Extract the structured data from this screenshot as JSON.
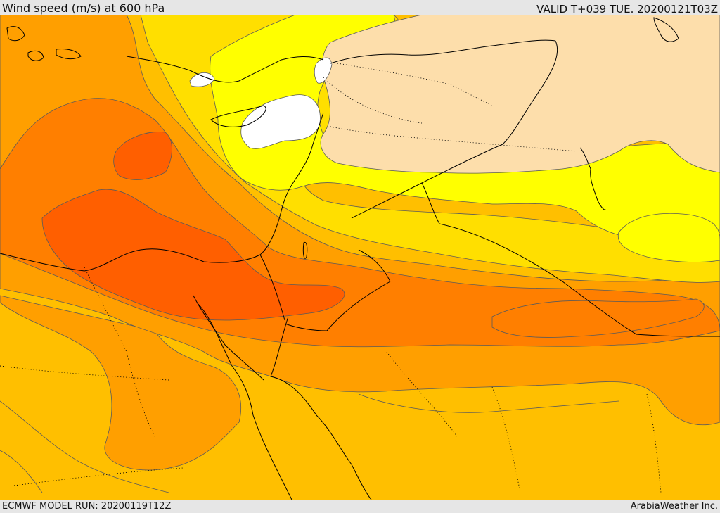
{
  "header": {
    "title": "Wind speed (m/s) at 600 hPa",
    "valid": "VALID T+039 TUE. 20200121T03Z"
  },
  "footer": {
    "model_run": "ECMWF MODEL RUN: 20200119T12Z",
    "credit": "ArabiaWeather Inc."
  },
  "map": {
    "variable": "wind speed",
    "units": "m/s",
    "level": "600 hPa",
    "palette": {
      "calm": "#ffffff",
      "weak": "#fddeab",
      "light": "#ffff00",
      "moderate_low": "#ffdf00",
      "moderate": "#ffbf00",
      "strong": "#ff9f00",
      "stronger": "#ff7f00",
      "strongest": "#ff5f00"
    },
    "sea_color": "#ffbf00",
    "coastline_color": "#000000",
    "contour_color": "#5a5a5a"
  }
}
